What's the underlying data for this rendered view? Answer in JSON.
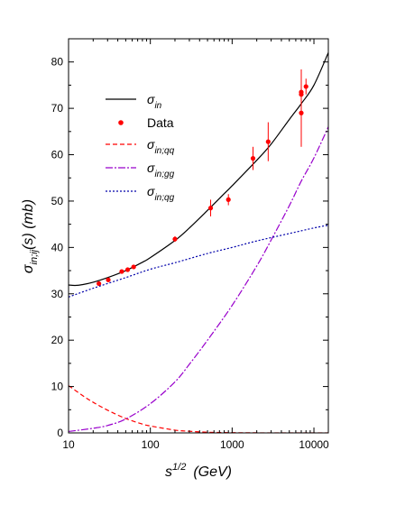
{
  "chart_data": {
    "type": "line",
    "title": "",
    "xlabel": {
      "base": "s",
      "sup": "1/2",
      "rest": "(GeV)"
    },
    "ylabel": {
      "sigma": "σ",
      "sub": "in;ij",
      "rest": "(s)  (mb)"
    },
    "x_scale": "log",
    "xlim": [
      10,
      15000
    ],
    "ylim": [
      0,
      85
    ],
    "x_ticks": [
      10,
      100,
      1000,
      10000
    ],
    "x_tick_labels": [
      "10",
      "100",
      "1000",
      "10000"
    ],
    "y_ticks": [
      0,
      10,
      20,
      30,
      40,
      50,
      60,
      70,
      80
    ],
    "y_tick_labels": [
      "0",
      "10",
      "20",
      "30",
      "40",
      "50",
      "60",
      "70",
      "80"
    ],
    "grid": false,
    "legend_position": "top-left",
    "series": [
      {
        "name": "σ_in",
        "label_base": "σ",
        "label_sub": "in",
        "kind": "line",
        "color": "#000000",
        "dash": "",
        "x": [
          10,
          12,
          15,
          20,
          30,
          50,
          80,
          100,
          200,
          300,
          500,
          800,
          1000,
          2000,
          3000,
          5000,
          7000,
          10000,
          15000
        ],
        "y": [
          31.9,
          31.8,
          32.0,
          32.5,
          33.5,
          35.0,
          36.8,
          37.8,
          41.5,
          44.2,
          48.0,
          51.6,
          53.3,
          58.8,
          62.3,
          67.6,
          71.0,
          75.0,
          82.0
        ]
      },
      {
        "name": "Data",
        "label_base": "Data",
        "label_sub": "",
        "kind": "points",
        "color": "#ff0000",
        "points": [
          {
            "x": 23.5,
            "y": 32.2,
            "err": 0
          },
          {
            "x": 30.6,
            "y": 33.0,
            "err": 0
          },
          {
            "x": 44.7,
            "y": 34.8,
            "err": 0
          },
          {
            "x": 52.8,
            "y": 35.2,
            "err": 0
          },
          {
            "x": 62.5,
            "y": 35.8,
            "err": 0
          },
          {
            "x": 200,
            "y": 41.8,
            "err": 0.6
          },
          {
            "x": 546,
            "y": 48.5,
            "err": 1.8
          },
          {
            "x": 900,
            "y": 50.3,
            "err": 1.2
          },
          {
            "x": 1800,
            "y": 59.2,
            "err": 2.5
          },
          {
            "x": 2760,
            "y": 62.8,
            "err": 4.2
          },
          {
            "x": 7000,
            "y": 69.0,
            "err": 7.3
          },
          {
            "x": 7000,
            "y": 73.0,
            "err": 2.0
          },
          {
            "x": 7000,
            "y": 73.5,
            "err": 4.9
          },
          {
            "x": 8000,
            "y": 74.7,
            "err": 1.7
          }
        ]
      },
      {
        "name": "σ_in;qq",
        "label_base": "σ",
        "label_sub": "in;qq",
        "kind": "line",
        "color": "#ff0000",
        "dash": "5,3",
        "x": [
          10,
          15,
          20,
          30,
          50,
          80,
          100,
          200,
          300,
          500,
          1000,
          2000,
          5000,
          15000
        ],
        "y": [
          10.2,
          8.0,
          6.6,
          4.9,
          3.1,
          1.9,
          1.5,
          0.6,
          0.35,
          0.15,
          0.05,
          0.02,
          0.0,
          0.0
        ]
      },
      {
        "name": "σ_in;gg",
        "label_base": "σ",
        "label_sub": "in;gg",
        "kind": "line",
        "color": "#9900cc",
        "dash": "8,2,2,2",
        "x": [
          10,
          20,
          30,
          50,
          100,
          200,
          300,
          500,
          1000,
          2000,
          3000,
          5000,
          7000,
          10000,
          15000
        ],
        "y": [
          0.3,
          1.0,
          1.6,
          3.0,
          6.3,
          11.0,
          14.8,
          20.0,
          27.5,
          36.0,
          41.6,
          49.0,
          54.3,
          59.3,
          66.0
        ]
      },
      {
        "name": "σ_in;qg",
        "label_base": "σ",
        "label_sub": "in;qg",
        "kind": "line",
        "color": "#0000aa",
        "dash": "2,2",
        "x": [
          10,
          20,
          50,
          100,
          200,
          500,
          1000,
          2000,
          5000,
          10000,
          15000
        ],
        "y": [
          29.3,
          31.2,
          33.5,
          35.3,
          36.7,
          38.7,
          40.0,
          41.4,
          43.0,
          44.2,
          44.8
        ]
      }
    ]
  }
}
